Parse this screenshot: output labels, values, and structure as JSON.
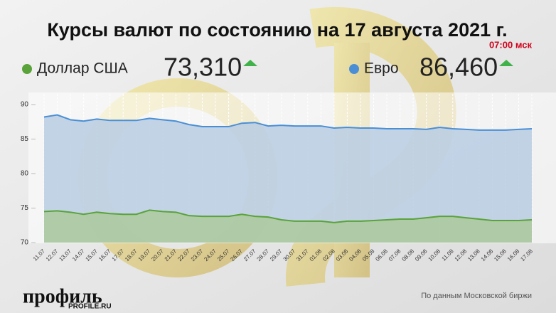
{
  "chart_data": {
    "type": "line",
    "title": "Курсы валют по состоянию на 17 августа 2021 г.",
    "subtitle": "07:00 мск",
    "categories": [
      "11.07",
      "12.07",
      "13.07",
      "14.07",
      "15.07",
      "16.07",
      "17.07",
      "18.07",
      "19.07",
      "20.07",
      "21.07",
      "22.07",
      "23.07",
      "24.07",
      "25.07",
      "26.07",
      "27.07",
      "28.07",
      "29.07",
      "30.07",
      "31.07",
      "01.08",
      "02.08",
      "03.08",
      "04.08",
      "05.08",
      "06.08",
      "07.08",
      "08.08",
      "09.08",
      "10.08",
      "11.08",
      "12.08",
      "13.08",
      "14.08",
      "15.08",
      "16.08",
      "17.08"
    ],
    "series": [
      {
        "name": "Евро",
        "color": "#4a8fd6",
        "fill": "#b9cce3",
        "current_label": "86,460",
        "values": [
          88.2,
          88.5,
          87.8,
          87.6,
          87.9,
          87.7,
          87.7,
          87.7,
          88.0,
          87.8,
          87.6,
          87.1,
          86.8,
          86.8,
          86.8,
          87.3,
          87.4,
          86.9,
          87.0,
          86.9,
          86.9,
          86.9,
          86.6,
          86.7,
          86.6,
          86.6,
          86.5,
          86.5,
          86.5,
          86.4,
          86.7,
          86.5,
          86.4,
          86.3,
          86.3,
          86.3,
          86.4,
          86.5
        ]
      },
      {
        "name": "Доллар США",
        "color": "#5aa33a",
        "fill": "#acc99c",
        "current_label": "73,310",
        "values": [
          74.5,
          74.6,
          74.4,
          74.1,
          74.4,
          74.2,
          74.1,
          74.1,
          74.7,
          74.5,
          74.4,
          73.9,
          73.8,
          73.8,
          73.8,
          74.1,
          73.8,
          73.7,
          73.3,
          73.1,
          73.1,
          73.1,
          72.9,
          73.1,
          73.1,
          73.2,
          73.3,
          73.4,
          73.4,
          73.6,
          73.8,
          73.8,
          73.6,
          73.4,
          73.2,
          73.2,
          73.2,
          73.3
        ]
      }
    ],
    "ylim": [
      70,
      90
    ],
    "yticks": [
      70,
      75,
      80,
      85,
      90
    ],
    "grid": true
  },
  "footer": {
    "logo": "профиль",
    "site": "PROFILE.RU",
    "source": "По данным Московской биржи"
  }
}
